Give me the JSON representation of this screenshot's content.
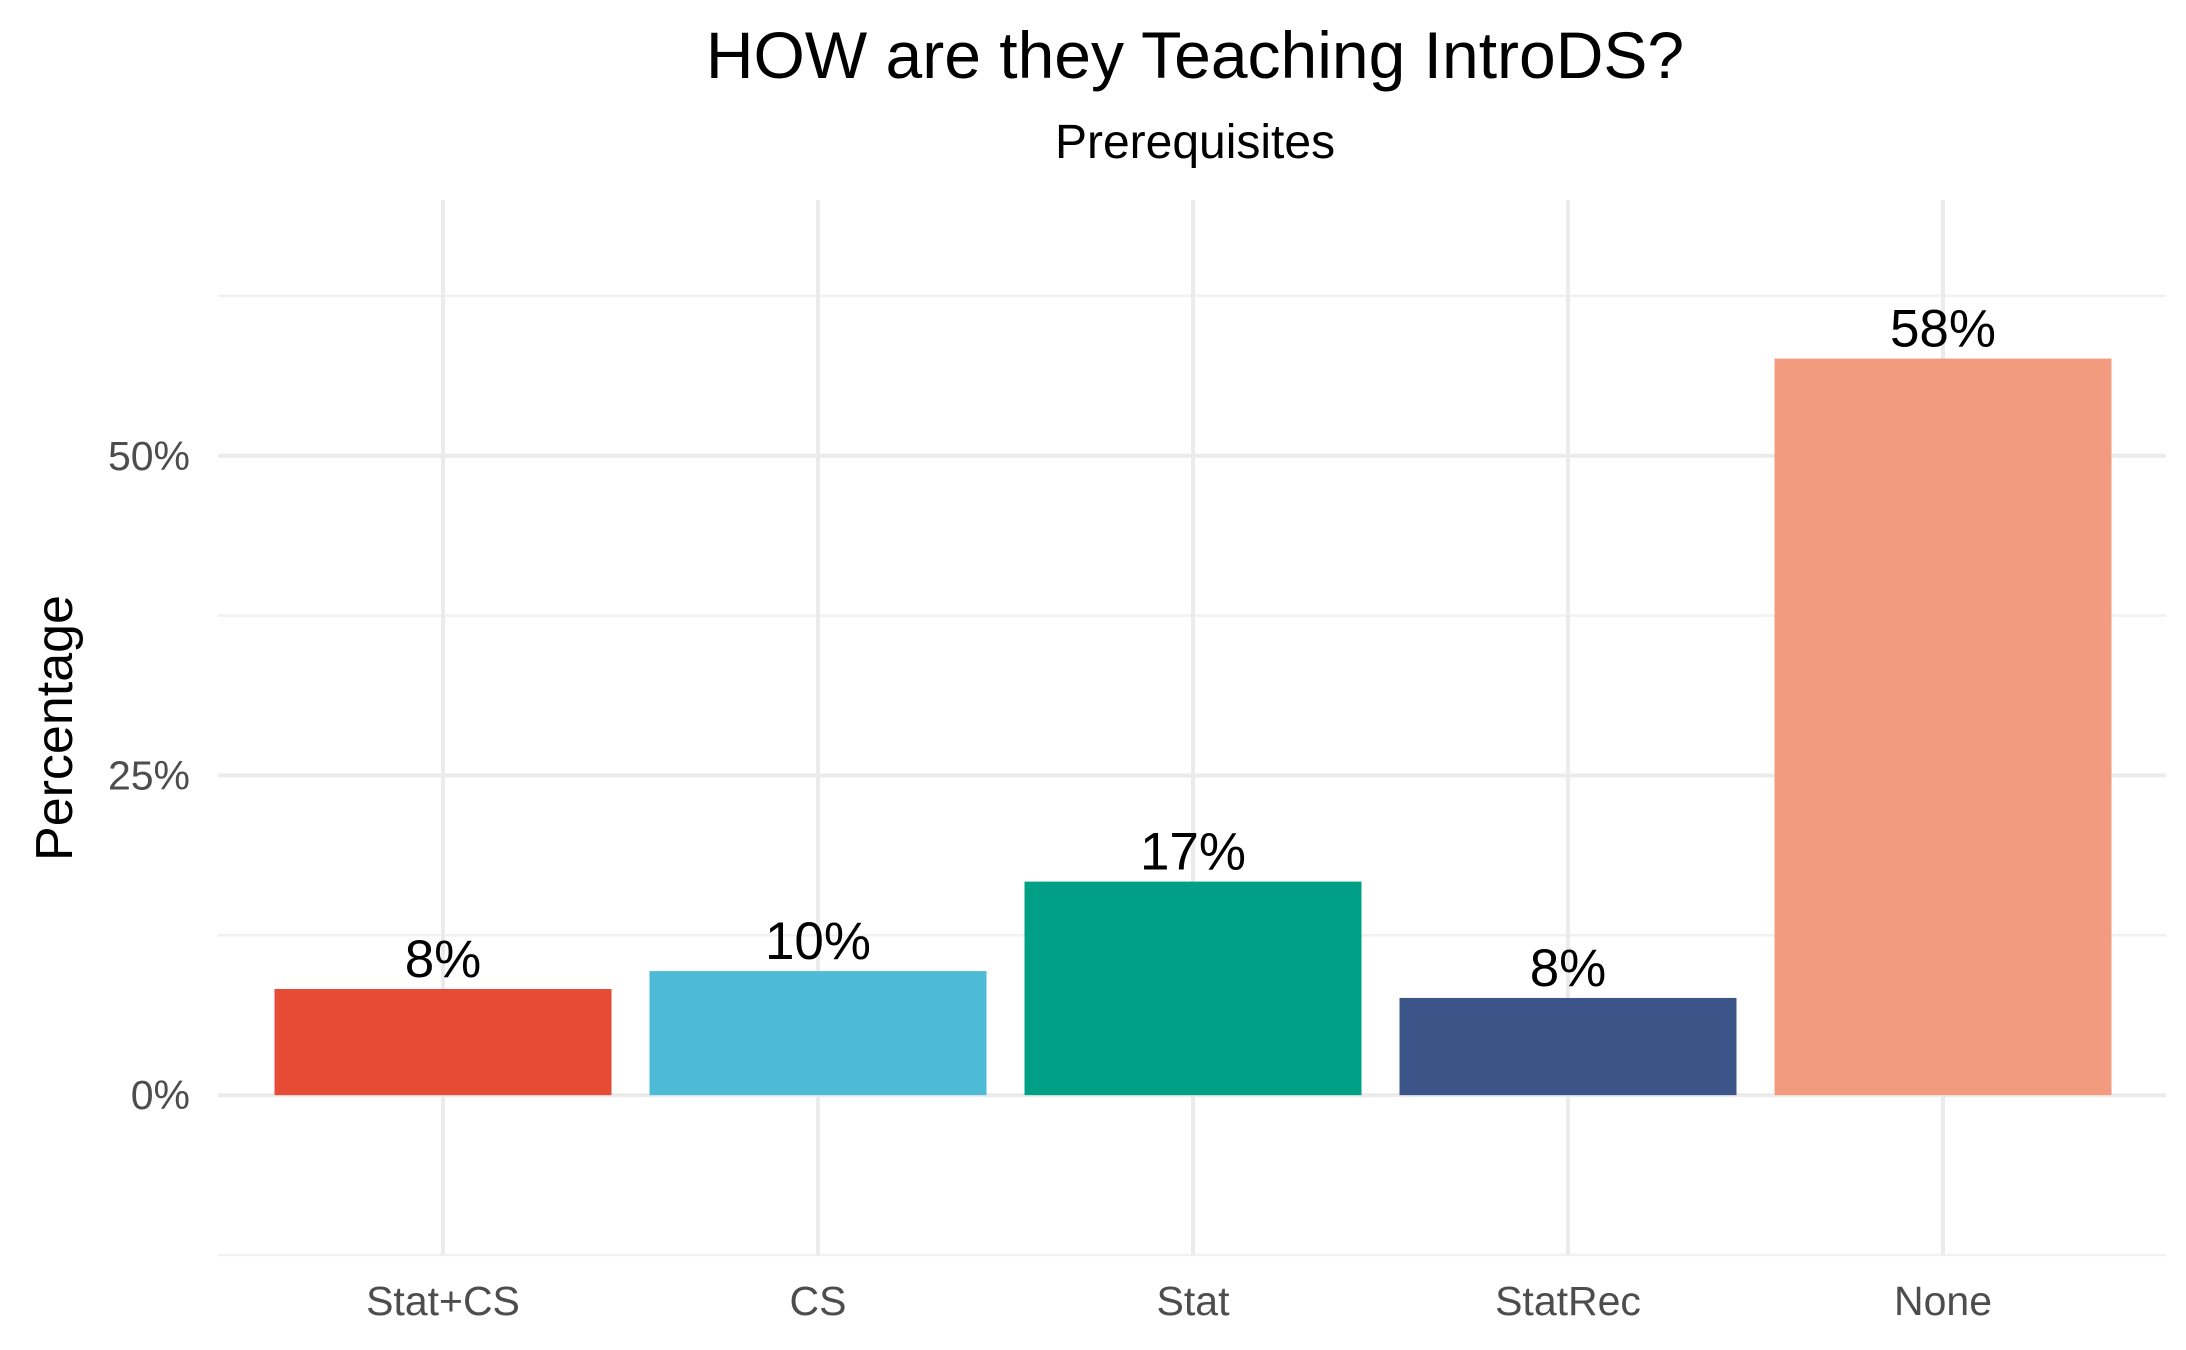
{
  "chart_data": {
    "type": "bar",
    "title": "HOW are they Teaching IntroDS?",
    "subtitle": "Prerequisites",
    "xlabel": "",
    "ylabel": "Percentage",
    "categories": [
      "Stat+CS",
      "CS",
      "Stat",
      "StatRec",
      "None"
    ],
    "values": [
      8.3,
      9.7,
      16.7,
      7.6,
      57.6
    ],
    "data_labels": [
      "8%",
      "10%",
      "17%",
      "8%",
      "58%"
    ],
    "colors": [
      "#E64B35",
      "#4DBBD5",
      "#00A087",
      "#3C5488",
      "#F39B7F"
    ],
    "ylim": [
      -12.5,
      70
    ],
    "yticks": [
      0,
      25,
      50
    ],
    "ytick_labels": [
      "0%",
      "25%",
      "50%"
    ],
    "grid": true,
    "legend": "none"
  }
}
